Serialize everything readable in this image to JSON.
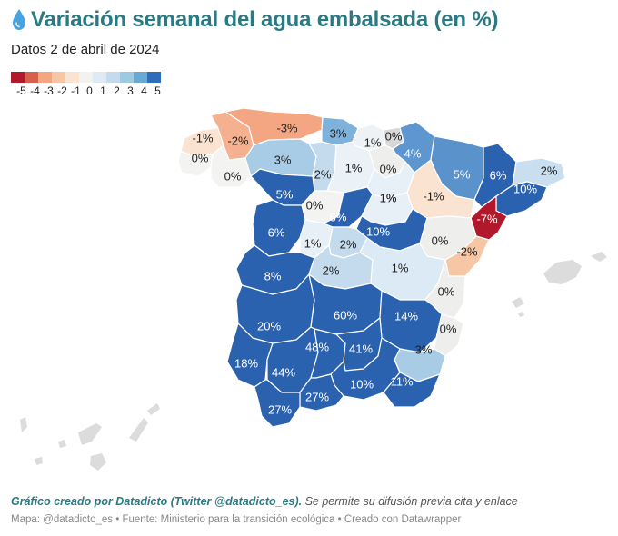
{
  "header": {
    "title": "Variación semanal del agua embalsada (en %)",
    "subtitle": "Datos 2 de abril de 2024"
  },
  "legend": {
    "labels": [
      "-5",
      "-4",
      "-3",
      "-2",
      "-1",
      "0",
      "1",
      "2",
      "3",
      "4",
      "5"
    ],
    "colors": [
      "#b2182b",
      "#d6604d",
      "#f4a582",
      "#f7c6a5",
      "#fbe3d1",
      "#f2f2f0",
      "#deebf5",
      "#c4dbee",
      "#9ecae1",
      "#6aa8d6",
      "#2e6db8"
    ]
  },
  "colors": {
    "title": "#2a7a83",
    "deep_blue": "#2a62b0",
    "deep_red": "#b2182b",
    "islands": "#dcdcdc"
  },
  "map": {
    "regions": [
      {
        "name": "A Coruña",
        "value": "-1%",
        "color": "#fbe3d1"
      },
      {
        "name": "Lugo",
        "value": "-2%",
        "color": "#f4b08f"
      },
      {
        "name": "Asturias",
        "value": "-3%",
        "color": "#f4a582"
      },
      {
        "name": "Cantabria",
        "value": "3%",
        "color": "#7fb2db"
      },
      {
        "name": "Bizkaia",
        "value": "1%",
        "color": "#eef2f4"
      },
      {
        "name": "Gipuzkoa",
        "value": "0%",
        "color": "#d8d8d8"
      },
      {
        "name": "Navarra",
        "value": "4%",
        "color": "#5e96cf"
      },
      {
        "name": "Huesca",
        "value": "5%",
        "color": "#5a92cc"
      },
      {
        "name": "Lleida",
        "value": "6%",
        "color": "#2a62b0"
      },
      {
        "name": "Girona",
        "value": "2%",
        "color": "#c9dff0"
      },
      {
        "name": "Barcelona",
        "value": "10%",
        "color": "#2a62b0"
      },
      {
        "name": "Tarragona",
        "value": "-7%",
        "color": "#b2182b"
      },
      {
        "name": "Pontevedra",
        "value": "0%",
        "color": "#f3f3f1"
      },
      {
        "name": "Ourense",
        "value": "0%",
        "color": "#f3f3f1"
      },
      {
        "name": "León",
        "value": "3%",
        "color": "#a9cce6"
      },
      {
        "name": "Palencia",
        "value": "2%",
        "color": "#c4dbee"
      },
      {
        "name": "Burgos",
        "value": "1%",
        "color": "#eaf1f7"
      },
      {
        "name": "Álava",
        "value": "0%",
        "color": "#eeeeec"
      },
      {
        "name": "La Rioja",
        "value": "1%",
        "color": "#e7eff7"
      },
      {
        "name": "Zaragoza",
        "value": "-1%",
        "color": "#fbe3d1"
      },
      {
        "name": "Zamora",
        "value": "5%",
        "color": "#2a62b0"
      },
      {
        "name": "Valladolid",
        "value": "0%",
        "color": "#f3f3f1"
      },
      {
        "name": "Segovia",
        "value": "6%",
        "color": "#2a62b0"
      },
      {
        "name": "Soria",
        "value": "1%",
        "color": "#e7eff7"
      },
      {
        "name": "Guadalajara",
        "value": "10%",
        "color": "#2a62b0"
      },
      {
        "name": "Teruel",
        "value": "0%",
        "color": "#eeeeec"
      },
      {
        "name": "Castellón",
        "value": "-2%",
        "color": "#f7c6a5"
      },
      {
        "name": "Salamanca",
        "value": "6%",
        "color": "#2a62b0"
      },
      {
        "name": "Ávila",
        "value": "1%",
        "color": "#e7eff7"
      },
      {
        "name": "Madrid",
        "value": "2%",
        "color": "#c4dbee"
      },
      {
        "name": "Cáceres",
        "value": "8%",
        "color": "#2a62b0"
      },
      {
        "name": "Toledo",
        "value": "2%",
        "color": "#c4dbee"
      },
      {
        "name": "Cuenca",
        "value": "1%",
        "color": "#dceaf5"
      },
      {
        "name": "Valencia",
        "value": "0%",
        "color": "#eeeeec"
      },
      {
        "name": "Badajoz",
        "value": "20%",
        "color": "#2a62b0"
      },
      {
        "name": "Ciudad Real",
        "value": "60%",
        "color": "#2a62b0"
      },
      {
        "name": "Albacete",
        "value": "14%",
        "color": "#2a62b0"
      },
      {
        "name": "Alicante",
        "value": "0%",
        "color": "#eeeeec"
      },
      {
        "name": "Murcia",
        "value": "3%",
        "color": "#a9cce6"
      },
      {
        "name": "Huelva",
        "value": "18%",
        "color": "#2a62b0"
      },
      {
        "name": "Sevilla",
        "value": "44%",
        "color": "#2a62b0"
      },
      {
        "name": "Córdoba",
        "value": "48%",
        "color": "#2a62b0"
      },
      {
        "name": "Jaén",
        "value": "41%",
        "color": "#2a62b0"
      },
      {
        "name": "Granada",
        "value": "10%",
        "color": "#2a62b0"
      },
      {
        "name": "Almería",
        "value": "11%",
        "color": "#2a62b0"
      },
      {
        "name": "Málaga",
        "value": "27%",
        "color": "#2a62b0"
      },
      {
        "name": "Cádiz",
        "value": "27%",
        "color": "#2a62b0"
      }
    ]
  },
  "footer": {
    "credit_strong": "Gráfico creado por Datadicto (Twitter @datadicto_es).",
    "credit_rest": " Se permite su difusión previa cita y enlace",
    "source": "Mapa: @datadicto_es • Fuente: Ministerio para la transición ecológica • Creado con Datawrapper"
  }
}
